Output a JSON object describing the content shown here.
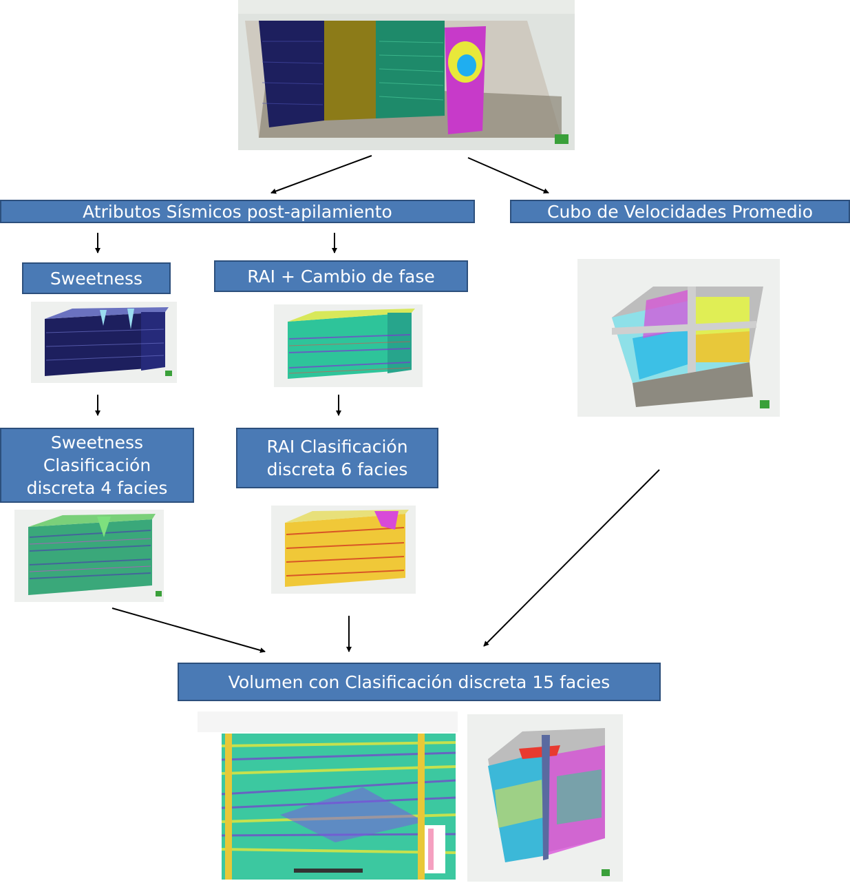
{
  "boxes": {
    "atributos": "Atributos Sísmicos post-apilamiento",
    "cubo": "Cubo de Velocidades Promedio",
    "sweetness": "Sweetness",
    "rai": "RAI   + Cambio de fase",
    "sweet_class_l1": "Sweetness",
    "sweet_class_l2": "Clasificación",
    "sweet_class_l3": "discreta 4 facies",
    "rai_class_l1": "RAI  Clasificación",
    "rai_class_l2": "discreta 6 facies",
    "volumen": "Volumen con Clasificación  discreta 15  facies"
  },
  "colors": {
    "box_fill": "#4a7ab5",
    "box_border": "#2c4f7c",
    "box_text": "#ffffff",
    "arrow": "#000000"
  },
  "images": {
    "top_seismic": "seismic-3d-volume-with-attribute-panels",
    "sweetness": "sweetness-attribute-cube",
    "rai": "rai-phase-attribute-cube",
    "cubo": "average-velocity-cube",
    "sweet_class": "sweetness-4-facies-cube",
    "rai_class": "rai-6-facies-cube",
    "section": "15-facies-cross-section",
    "cube15": "15-facies-3d-cube"
  }
}
